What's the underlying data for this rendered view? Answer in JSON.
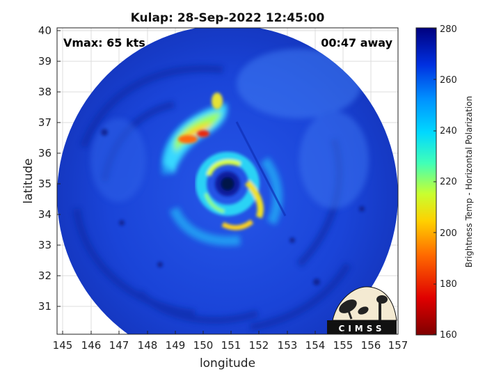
{
  "title": "Kulap: 28-Sep-2022 12:45:00",
  "vmax_text": "Vmax: 65 kts",
  "time_text": "00:47 away",
  "xlabel": "longitude",
  "ylabel": "latitude",
  "colorbar_label": "Brightness Temp - Horizontal Polarization",
  "logo_text": "CIMSS",
  "x_ticks": [
    "145",
    "146",
    "147",
    "148",
    "149",
    "150",
    "151",
    "152",
    "153",
    "154",
    "155",
    "156",
    "157"
  ],
  "y_ticks": [
    "31",
    "32",
    "33",
    "34",
    "35",
    "36",
    "37",
    "38",
    "39",
    "40"
  ],
  "colorbar_ticks": [
    "160",
    "180",
    "200",
    "220",
    "240",
    "260",
    "280"
  ],
  "chart_data": {
    "type": "heatmap",
    "title": "Kulap: 28-Sep-2022 12:45:00",
    "xlabel": "longitude",
    "ylabel": "latitude",
    "xlim": [
      144.85,
      157.0
    ],
    "ylim": [
      30.1,
      40.2
    ],
    "color_range": [
      160,
      280
    ],
    "colormap": "jet",
    "grid": true,
    "storm_center": {
      "lon": 150.9,
      "lat": 35.0
    },
    "annotations": [
      "Vmax: 65 kts",
      "00:47 away"
    ]
  },
  "colors": {
    "background_blue": "#1a3fd6",
    "deep_blue": "#0a1f9e",
    "eye": "#06124a",
    "cyan": "#1ec8f0",
    "yellow": "#f2e600",
    "red": "#e6330a"
  }
}
